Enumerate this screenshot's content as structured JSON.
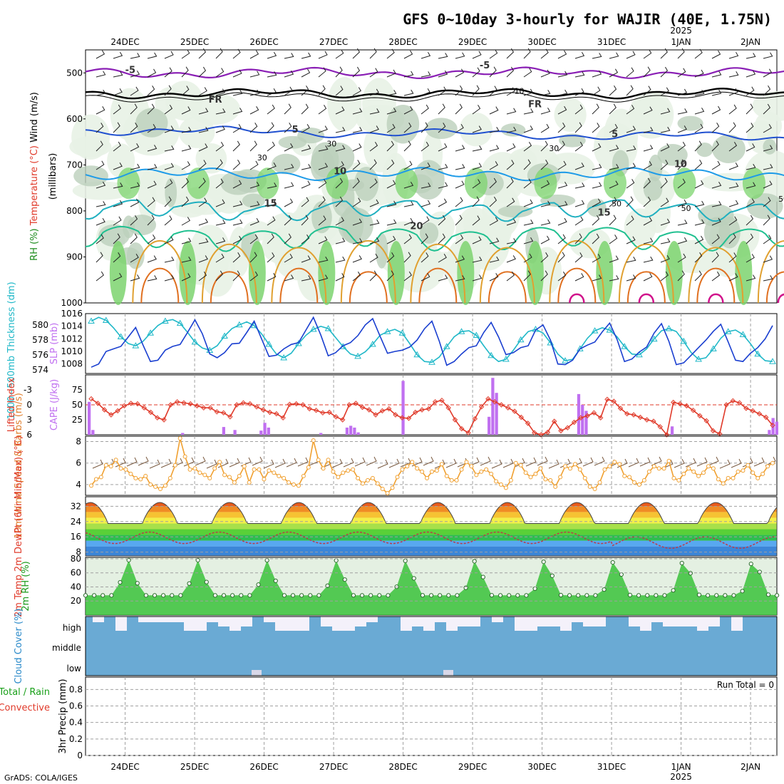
{
  "title": "GFS 0~10day 3-hourly for WAJIR (40E, 1.75N)",
  "footer": "GrADS: COLA/IGES",
  "colors": {
    "temp_neg": "#8a1fb5",
    "temp_fr": "#000000",
    "temp_5": "#2050d0",
    "temp_10": "#1e9be8",
    "temp_15": "#20b0c0",
    "temp_20": "#20c090",
    "temp_25": "#e0a030",
    "temp_30": "#e07020",
    "temp_35": "#d0108a",
    "slp": "#1a3fd0",
    "thick": "#20b8c8",
    "cape": "#c070f0",
    "li": "#e03a2a",
    "wind": "#f0a030",
    "rh": "#10b010",
    "cloud": "#6aaad4",
    "grid": "#a0a0a0"
  },
  "chart_data": [
    {
      "name": "upper-air",
      "type": "heatmap",
      "ylabel_parts": [
        "Wind (m/s)",
        "Temperature (°C)",
        "RH (%)",
        "(millibars)"
      ],
      "ylim": [
        1000,
        450
      ],
      "yticks": [
        500,
        600,
        700,
        800,
        900,
        1000
      ],
      "x_labels": [
        "24DEC",
        "25DEC",
        "26DEC",
        "27DEC",
        "28DEC",
        "29DEC",
        "30DEC",
        "31DEC",
        "1JAN",
        "2JAN"
      ],
      "x_year": "2025",
      "contour_labels": [
        {
          "text": "-5",
          "day": 0.0,
          "p": 500
        },
        {
          "text": "-5",
          "day": 5.1,
          "p": 490
        },
        {
          "text": "FR",
          "day": 1.2,
          "p": 565
        },
        {
          "text": "FR",
          "day": 5.8,
          "p": 575
        },
        {
          "text": "5",
          "day": 2.4,
          "p": 630
        },
        {
          "text": "5",
          "day": 7.0,
          "p": 640
        },
        {
          "text": "10",
          "day": 3.0,
          "p": 720
        },
        {
          "text": "10",
          "day": 7.9,
          "p": 705
        },
        {
          "text": "15",
          "day": 2.0,
          "p": 790
        },
        {
          "text": "15",
          "day": 6.8,
          "p": 810
        },
        {
          "text": "20",
          "day": 4.1,
          "p": 840
        }
      ],
      "rh_labels": [
        {
          "text": "10",
          "day": 5.6,
          "p": 545
        },
        {
          "text": "30",
          "day": 2.9,
          "p": 660
        },
        {
          "text": "30",
          "day": 1.9,
          "p": 690
        },
        {
          "text": "30",
          "day": 6.1,
          "p": 670
        },
        {
          "text": "50",
          "day": 7.0,
          "p": 790
        },
        {
          "text": "50",
          "day": 8.0,
          "p": 800
        },
        {
          "text": "50",
          "day": 9.4,
          "p": 780
        }
      ]
    },
    {
      "name": "slp-thickness",
      "type": "line",
      "ylabel_left": "1000~500mb Thickness (dm)",
      "ylabel_right": "SLP (mb)",
      "left_ticks": [
        574,
        576,
        578,
        580
      ],
      "right_ticks": [
        1008,
        1010,
        1012,
        1014,
        1016
      ],
      "left_lim": [
        573.5,
        581.5
      ],
      "right_lim": [
        1006.5,
        1016
      ],
      "series": [
        {
          "name": "SLP",
          "axis": "right",
          "values": [
            1007.5,
            1008,
            1010,
            1010.4,
            1010.8,
            1012.3,
            1013.8,
            1011,
            1008.4,
            1008.6,
            1010.2,
            1010.8,
            1011.1,
            1013,
            1015,
            1012.8,
            1009.6,
            1009,
            1009.8,
            1011.2,
            1011.3,
            1013,
            1014.8,
            1012,
            1009.2,
            1009.4,
            1010.4,
            1011.1,
            1011.4,
            1013.4,
            1015.4,
            1012.6,
            1009.3,
            1009.8,
            1010.9,
            1011.4,
            1012.5,
            1014.2,
            1015.2,
            1012.4,
            1009.7,
            1010,
            1010.2,
            1010.7,
            1011.8,
            1013.6,
            1014.8,
            1011.6,
            1007.8,
            1008.4,
            1009.6,
            1010.6,
            1010.9,
            1013,
            1014.6,
            1012.3,
            1009.5,
            1009.8,
            1010.6,
            1010.9,
            1013.4,
            1014.2,
            1011.8,
            1008,
            1007.9,
            1008.6,
            1010.4,
            1011,
            1011.5,
            1013.1,
            1014.5,
            1011.9,
            1008.4,
            1008.8,
            1009.9,
            1010.7,
            1012.9,
            1014.4,
            1011.6,
            1007.9,
            1008.2,
            1009.4,
            1010.6,
            1011.8,
            1013.2,
            1014.3,
            1011.5,
            1008.6,
            1008.4,
            1009.7,
            1010.6,
            1012,
            1014.1
          ]
        },
        {
          "name": "Thickness",
          "axis": "left",
          "values": [
            580.5,
            581,
            580.6,
            579.6,
            578.4,
            577.5,
            577.2,
            577.8,
            578.9,
            579.9,
            580.5,
            580.7,
            580.2,
            579,
            577.7,
            576.9,
            576.6,
            577.2,
            578.5,
            579.5,
            580,
            580.4,
            579.9,
            578.8,
            577.4,
            576.1,
            575.6,
            576.2,
            577.5,
            578.6,
            579.4,
            579.8,
            579.5,
            578.3,
            577.1,
            576.1,
            575.8,
            576.4,
            577.4,
            578.6,
            579.1,
            579.4,
            578.9,
            577.5,
            576,
            575.1,
            575,
            575.7,
            577.1,
            578.4,
            579.1,
            579.2,
            578.6,
            577.2,
            575.9,
            575.1,
            575.4,
            576.6,
            578,
            579.1,
            579.4,
            578.9,
            577.6,
            576.1,
            575.2,
            575.4,
            576.8,
            578.2,
            579.2,
            579.6,
            579.3,
            578.4,
            577.1,
            576.1,
            576,
            576.8,
            578.1,
            579.2,
            579.5,
            579.1,
            577.8,
            576.3,
            575.4,
            575.6,
            576.8,
            578.2,
            579.1,
            579.3,
            578.7,
            577.5,
            576.1,
            575.2,
            575.1
          ]
        }
      ]
    },
    {
      "name": "cape-li",
      "type": "bar",
      "ylabel_left": "Lifted Index",
      "ylabel_right": "CAPE (J/kg)",
      "left_ticks": [
        -3,
        0,
        3,
        6
      ],
      "right_ticks": [
        25,
        50,
        75
      ],
      "left_lim": [
        6,
        -6
      ],
      "right_lim": [
        0,
        100
      ],
      "cape": [
        55,
        8,
        0,
        0,
        0,
        0,
        0,
        0,
        0,
        0,
        0,
        0,
        0,
        0,
        0,
        0,
        0,
        0,
        0,
        0,
        0,
        0,
        0,
        0,
        0,
        3,
        0,
        0,
        0,
        0,
        0,
        0,
        0,
        0,
        0,
        0,
        13,
        0,
        0,
        8,
        0,
        0,
        0,
        0,
        0,
        0,
        7,
        20,
        12,
        0,
        0,
        0,
        0,
        0,
        0,
        0,
        0,
        0,
        0,
        0,
        0,
        0,
        3,
        0,
        0,
        0,
        0,
        0,
        0,
        12,
        15,
        12,
        4,
        0,
        0,
        0,
        0,
        0,
        0,
        0,
        0,
        0,
        0,
        0,
        90,
        0,
        0,
        0,
        0,
        0,
        0,
        0,
        0,
        0,
        0,
        0,
        0,
        0,
        0,
        0,
        0,
        0,
        0,
        0,
        0,
        0,
        0,
        30,
        95,
        70,
        0,
        0,
        0,
        0,
        0,
        0,
        0,
        0,
        0,
        0,
        0,
        0,
        0,
        0,
        0,
        0,
        0,
        0,
        0,
        0,
        0,
        68,
        50,
        40,
        0,
        0,
        0,
        0,
        0,
        0,
        0,
        0,
        0,
        0,
        0,
        0,
        0,
        0,
        0,
        0,
        0,
        0,
        0,
        0,
        0,
        0,
        14,
        0,
        0,
        0,
        0,
        0,
        0,
        0,
        0,
        0,
        0,
        0,
        0,
        0,
        0,
        0,
        0,
        0,
        0,
        0,
        0,
        0,
        0,
        0,
        0,
        0,
        8,
        28,
        22
      ],
      "li": [
        -1.2,
        -0.3,
        1,
        2,
        1.2,
        0.2,
        -0.3,
        -0.2,
        0.6,
        1.5,
        2.6,
        3,
        0,
        -0.6,
        -0.4,
        -0.2,
        0.2,
        0.6,
        0.6,
        1.4,
        1.6,
        2.4,
        0,
        -0.4,
        -0.2,
        0.4,
        1,
        1.5,
        1.8,
        2.6,
        -0.1,
        -0.2,
        0,
        0.8,
        1.1,
        1.6,
        1.5,
        2.4,
        3,
        0,
        -0.3,
        0.5,
        1,
        2,
        1.2,
        0.8,
        2,
        2.6,
        2.7,
        1.5,
        1,
        0.8,
        -0.6,
        -0.9,
        0.6,
        3,
        4.8,
        5.6,
        2.8,
        0.4,
        -1.2,
        -0.6,
        0,
        0.6,
        1.3,
        2.5,
        3.7,
        5.6,
        6,
        5.5,
        3.3,
        5.2,
        4.6,
        3.5,
        2.6,
        2.2,
        1.6,
        2.6,
        -1.1,
        -0.7,
        0.7,
        1.8,
        2,
        2.5,
        3,
        3.3,
        4.4,
        6,
        -0.5,
        -0.2,
        0.2,
        1.1,
        2.2,
        3.2,
        5.2,
        5.8,
        0,
        -0.8,
        -0.4,
        0.7,
        1.2,
        1.8,
        2.5,
        4.1
      ]
    },
    {
      "name": "wind10m",
      "type": "line",
      "ylabel": "10m Wind Speed & Barbs (m/s)",
      "yticks": [
        4,
        6,
        8
      ],
      "ylim": [
        3,
        8.5
      ],
      "values": [
        3.9,
        4.5,
        4.7,
        5.8,
        5.7,
        6.3,
        5.5,
        5.4,
        5,
        4.6,
        4.5,
        4.8,
        4,
        3.8,
        3.6,
        3.9,
        4.6,
        5.8,
        8.3,
        6.6,
        5.4,
        5.5,
        5.1,
        4.9,
        4.6,
        5.5,
        6.1,
        4.9,
        4.7,
        4.2,
        4.8,
        5.7,
        4.2,
        5.4,
        5.4,
        4.5,
        5.3,
        5.1,
        4.8,
        4.6,
        4.2,
        4,
        3.9,
        4.8,
        5.6,
        8.1,
        6.3,
        5.5,
        6.3,
        5.2,
        4.7,
        5.1,
        5.3,
        5.4,
        4.6,
        4.1,
        4.4,
        4.6,
        4.1,
        3.6,
        3.2,
        3.7,
        4.7,
        5.4,
        5.7,
        6.1,
        5.5,
        5.2,
        4.6,
        5.2,
        5.3,
        5.9,
        4.8,
        4.4,
        4.4,
        5.4,
        6.1,
        5.7,
        4.9,
        5.2,
        5.4,
        5,
        4.3,
        4,
        3.7,
        4.4,
        6,
        5.8,
        5.1,
        4.7,
        5,
        5.5,
        4.5,
        4.4,
        3.8,
        4.7,
        5.7,
        5.5,
        5.9,
        5.4,
        4.6,
        3.8,
        3.6,
        4.2,
        5.4,
        5.7,
        6.1,
        5.9,
        4.8,
        4.7,
        4.2,
        4,
        4.4,
        5.2,
        5.7,
        5.5,
        5.5,
        6.2,
        4.6,
        4.4,
        5,
        5.5,
        5.2,
        4.8,
        5.1,
        5.7,
        5.5,
        4.5,
        4.1,
        4.6,
        4.6,
        5.2,
        5.3,
        5.8,
        5.1,
        4.6,
        5,
        5.7,
        6
      ]
    },
    {
      "name": "temp2m",
      "type": "area",
      "ylabel": "2m Temp 2m DewPt (6hr Min/Max) (°C)",
      "yticks": [
        8,
        16,
        24,
        32
      ],
      "ylim": [
        6,
        37
      ]
    },
    {
      "name": "rh2m",
      "type": "area",
      "ylabel": "2m RH (%)",
      "yticks": [
        20,
        40,
        60,
        80
      ],
      "ylim": [
        0,
        82
      ]
    },
    {
      "name": "cloud",
      "type": "bar",
      "ylabel": "Cloud Cover (%)",
      "levels": [
        "high",
        "middle",
        "low"
      ]
    },
    {
      "name": "precip",
      "type": "bar",
      "ylabel_parts": [
        "Total / Rain",
        "Convective",
        "3hr Precip (mm)"
      ],
      "yticks": [
        0,
        0.2,
        0.4,
        0.6,
        0.8
      ],
      "ylim": [
        0,
        0.95
      ],
      "run_total": "Run Total = 0"
    }
  ]
}
